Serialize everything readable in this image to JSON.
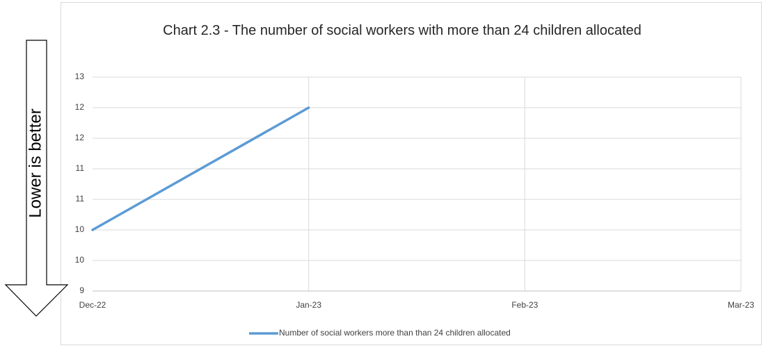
{
  "chart_data": {
    "type": "line",
    "title": "Chart 2.3 - The number of social workers with more than 24 children allocated",
    "annotation": "Lower is better",
    "categories": [
      "Dec-22",
      "Jan-23",
      "Feb-23",
      "Mar-23"
    ],
    "series": [
      {
        "name": "Number of social workers more than than 24 children allocated",
        "color": "#5b9bd5",
        "values": [
          10,
          12,
          null,
          null
        ]
      }
    ],
    "ylim": [
      9,
      12.5
    ],
    "yticks": [
      9,
      {
        "value": 9.5,
        "label": "10"
      },
      10,
      {
        "value": 10.5,
        "label": "11"
      },
      11,
      {
        "value": 11.5,
        "label": "12"
      },
      12,
      {
        "value": 12.5,
        "label": "13"
      }
    ],
    "grid": true
  }
}
